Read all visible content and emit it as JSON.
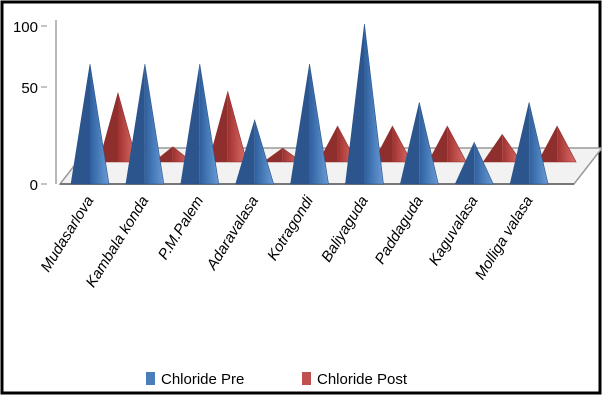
{
  "chart_data": {
    "type": "bar",
    "title": "",
    "xlabel": "",
    "ylabel": "",
    "ylim": [
      0,
      100
    ],
    "yticks": [
      0,
      50,
      100
    ],
    "grid": false,
    "legend_position": "bottom",
    "categories": [
      "Mudasarlova",
      "Kambala konda",
      "P.M.Palem",
      "Adaravalasa",
      "Kotragondi",
      "Baliyaguda",
      "Paddaguda",
      "Kaguvalasa",
      "Molliga valasa"
    ],
    "series": [
      {
        "name": "Chloride Pre",
        "color": "#4a7ebb",
        "values": [
          75,
          75,
          75,
          40,
          75,
          100,
          51,
          26,
          51
        ]
      },
      {
        "name": "Chloride Post",
        "color": "#c0504d",
        "values": [
          50,
          11,
          51,
          10,
          26,
          26,
          26,
          20,
          26
        ]
      }
    ]
  }
}
